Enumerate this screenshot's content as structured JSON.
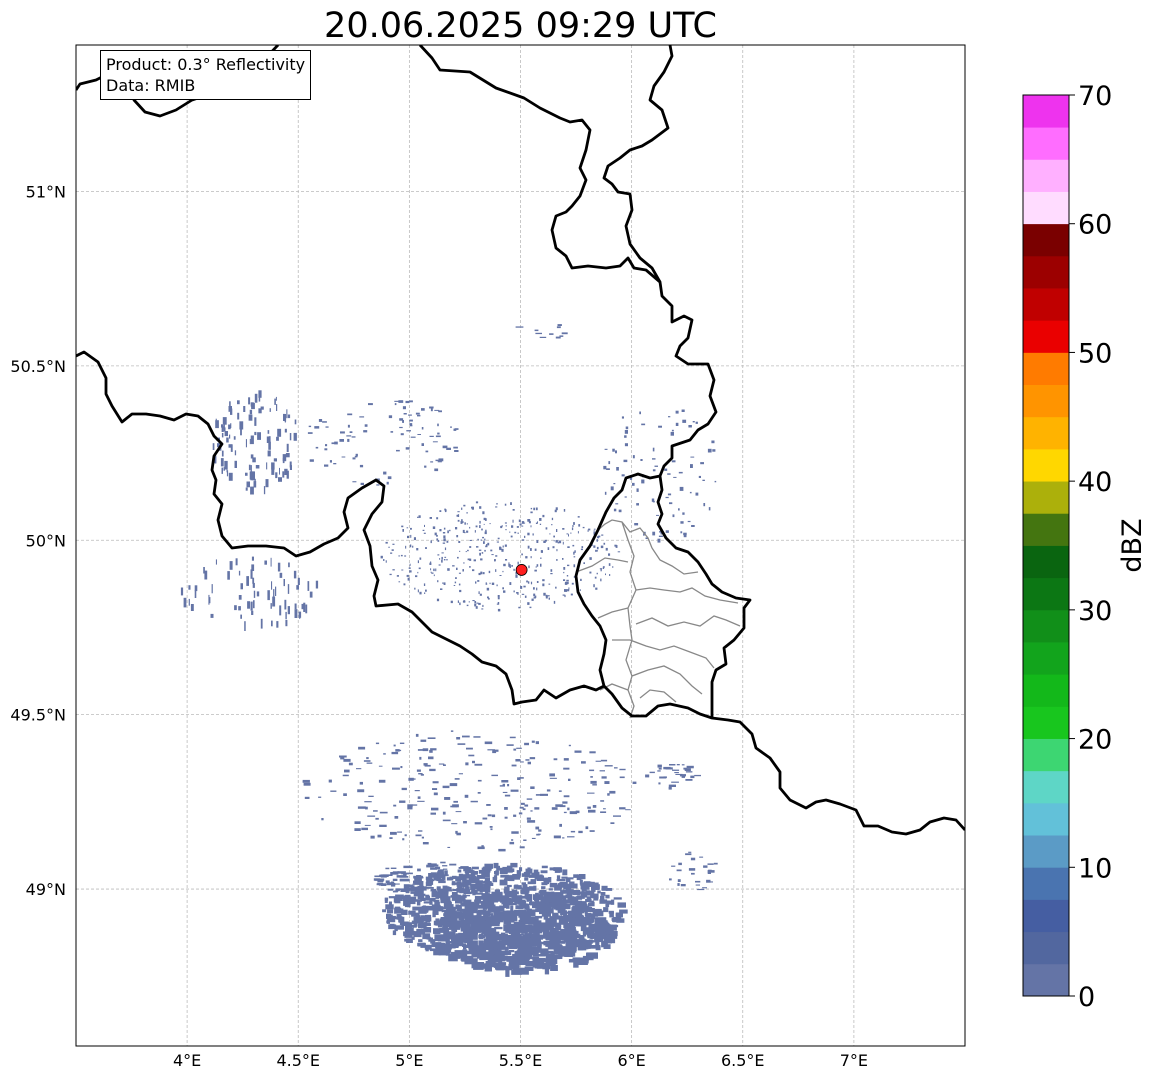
{
  "title": "20.06.2025 09:29 UTC",
  "info": {
    "product": "Product: 0.3° Reflectivity",
    "source": "Data: RMIB"
  },
  "map": {
    "lon_range": [
      3.5,
      7.5
    ],
    "lat_range": [
      48.55,
      51.42
    ],
    "lon_ticks": [
      {
        "value": 4.0,
        "label": "4°E"
      },
      {
        "value": 4.5,
        "label": "4.5°E"
      },
      {
        "value": 5.0,
        "label": "5°E"
      },
      {
        "value": 5.5,
        "label": "5.5°E"
      },
      {
        "value": 6.0,
        "label": "6°E"
      },
      {
        "value": 6.5,
        "label": "6.5°E"
      },
      {
        "value": 7.0,
        "label": "7°E"
      }
    ],
    "lat_ticks": [
      {
        "value": 51.0,
        "label": "51°N"
      },
      {
        "value": 50.5,
        "label": "50.5°N"
      },
      {
        "value": 50.0,
        "label": "50°N"
      },
      {
        "value": 49.5,
        "label": "49.5°N"
      },
      {
        "value": 49.0,
        "label": "49°N"
      }
    ],
    "grid": true,
    "radar_site": {
      "lon": 5.505,
      "lat": 49.915,
      "color": "#ff2020"
    },
    "echo_color": "#6474a6",
    "border_color": "#000000",
    "province_color": "#888888"
  },
  "colorbar": {
    "label": "dBZ",
    "min": 0,
    "max": 70,
    "ticks": [
      {
        "value": 0,
        "label": "0"
      },
      {
        "value": 10,
        "label": "10"
      },
      {
        "value": 20,
        "label": "20"
      },
      {
        "value": 30,
        "label": "30"
      },
      {
        "value": 40,
        "label": "40"
      },
      {
        "value": 50,
        "label": "50"
      },
      {
        "value": 60,
        "label": "60"
      },
      {
        "value": 70,
        "label": "70"
      }
    ],
    "colors": [
      "#6474a6",
      "#52679f",
      "#455ea2",
      "#4a74b0",
      "#5b9bc6",
      "#62c1d9",
      "#5ed6c6",
      "#3dd672",
      "#18c61e",
      "#13b81a",
      "#12a41c",
      "#118f19",
      "#0c7714",
      "#0a6510",
      "#447510",
      "#acb00b",
      "#ffd700",
      "#ffb300",
      "#ff9400",
      "#ff7b00",
      "#ea0000",
      "#c00000",
      "#9c0000",
      "#7a0000",
      "#ffdcff",
      "#ffb0ff",
      "#ff6dff",
      "#ee33ee"
    ]
  }
}
